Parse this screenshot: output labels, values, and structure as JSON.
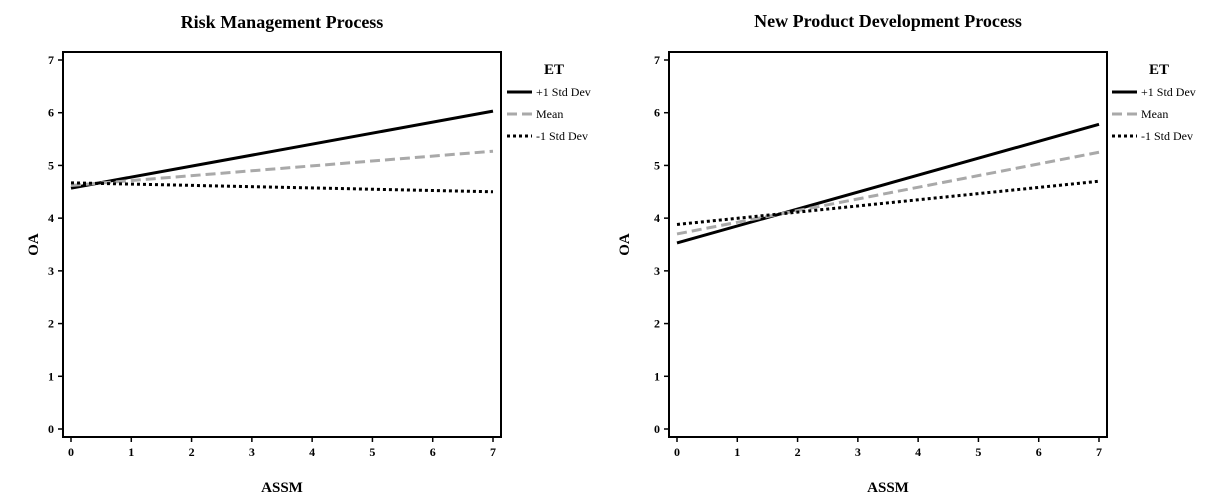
{
  "chart_data": [
    {
      "type": "line",
      "title": "Risk Management Process",
      "xlabel": "ASSM",
      "ylabel": "OA",
      "xlim": [
        0,
        7
      ],
      "ylim": [
        0,
        7
      ],
      "x_ticks": [
        "0",
        "1",
        "2",
        "3",
        "4",
        "5",
        "6",
        "7"
      ],
      "y_ticks": [
        "0",
        "1",
        "2",
        "3",
        "4",
        "5",
        "6",
        "7"
      ],
      "grid": false,
      "legend_title": "ET",
      "legend_position": "outside-right-top",
      "series": [
        {
          "name": "+1 Std Dev",
          "style": "solid",
          "color": "#000000",
          "x": [
            0,
            7
          ],
          "y": [
            4.57,
            6.03
          ]
        },
        {
          "name": "Mean",
          "style": "dashed",
          "color": "#a9a9a9",
          "x": [
            0,
            7
          ],
          "y": [
            4.62,
            5.27
          ]
        },
        {
          "name": "-1 Std Dev",
          "style": "dotted",
          "color": "#000000",
          "x": [
            0,
            7
          ],
          "y": [
            4.67,
            4.5
          ]
        }
      ]
    },
    {
      "type": "line",
      "title": "New Product Development Process",
      "xlabel": "ASSM",
      "ylabel": "OA",
      "xlim": [
        0,
        7
      ],
      "ylim": [
        0,
        7
      ],
      "x_ticks": [
        "0",
        "1",
        "2",
        "3",
        "4",
        "5",
        "6",
        "7"
      ],
      "y_ticks": [
        "0",
        "1",
        "2",
        "3",
        "4",
        "5",
        "6",
        "7"
      ],
      "grid": false,
      "legend_title": "ET",
      "legend_position": "outside-right-top",
      "series": [
        {
          "name": "+1 Std Dev",
          "style": "solid",
          "color": "#000000",
          "x": [
            0,
            7
          ],
          "y": [
            3.53,
            5.78
          ]
        },
        {
          "name": "Mean",
          "style": "dashed",
          "color": "#a9a9a9",
          "x": [
            0,
            7
          ],
          "y": [
            3.7,
            5.25
          ]
        },
        {
          "name": "-1 Std Dev",
          "style": "dotted",
          "color": "#000000",
          "x": [
            0,
            7
          ],
          "y": [
            3.88,
            4.7
          ]
        }
      ]
    }
  ]
}
